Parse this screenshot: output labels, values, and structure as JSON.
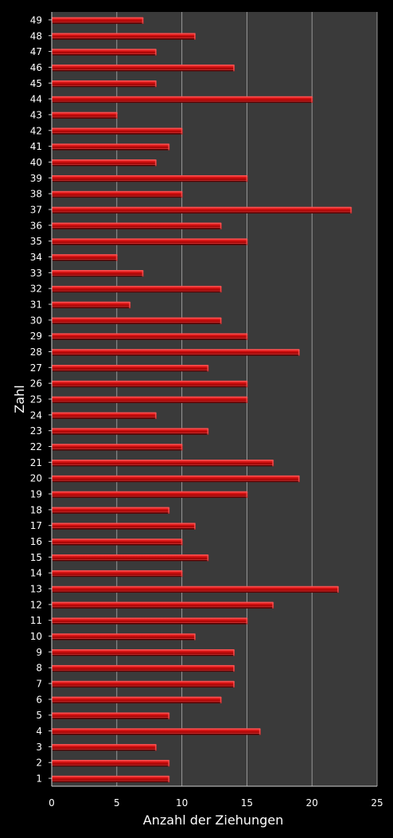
{
  "chart_data": {
    "type": "bar",
    "orientation": "horizontal",
    "xlabel": "Anzahl der Ziehungen",
    "ylabel": "Zahl",
    "xlim": [
      0,
      25
    ],
    "xticks": [
      "0",
      "5",
      "10",
      "15",
      "20",
      "25"
    ],
    "grid": true,
    "legend": "none",
    "colors": {
      "background": "#000000",
      "plot_area": "#3a3a3a",
      "gridline": "#9a9a9a",
      "bar": "#d81010",
      "bar_highlight": "#ff5a5a",
      "bar_shadow": "#5a0000"
    },
    "categories": [
      "1",
      "2",
      "3",
      "4",
      "5",
      "6",
      "7",
      "8",
      "9",
      "10",
      "11",
      "12",
      "13",
      "14",
      "15",
      "16",
      "17",
      "18",
      "19",
      "20",
      "21",
      "22",
      "23",
      "24",
      "25",
      "26",
      "27",
      "28",
      "29",
      "30",
      "31",
      "32",
      "33",
      "34",
      "35",
      "36",
      "37",
      "38",
      "39",
      "40",
      "41",
      "42",
      "43",
      "44",
      "45",
      "46",
      "47",
      "48",
      "49"
    ],
    "values": [
      9,
      9,
      8,
      16,
      9,
      13,
      14,
      14,
      14,
      11,
      15,
      17,
      22,
      10,
      12,
      10,
      11,
      9,
      15,
      19,
      17,
      10,
      12,
      8,
      15,
      15,
      12,
      19,
      15,
      13,
      6,
      13,
      7,
      5,
      15,
      13,
      23,
      10,
      15,
      8,
      9,
      10,
      5,
      20,
      8,
      14,
      8,
      11,
      7
    ]
  }
}
